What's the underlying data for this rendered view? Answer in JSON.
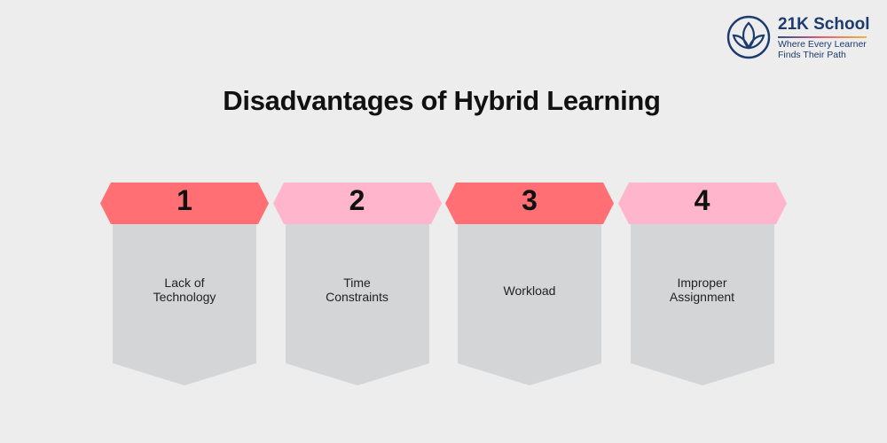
{
  "title": "Disadvantages of Hybrid Learning",
  "logo": {
    "name": "21K School",
    "tagline_line1": "Where Every Learner",
    "tagline_line2": "Finds Their Path"
  },
  "colors": {
    "background": "#ededed",
    "red": "#ff6f73",
    "pink": "#ffb6cc",
    "card_body": "#d4d5d7",
    "brand": "#1d3b6e"
  },
  "items": [
    {
      "number": "1",
      "label": "Lack of\nTechnology",
      "color": "#ff6f73"
    },
    {
      "number": "2",
      "label": "Time\nConstraints",
      "color": "#ffb6cc"
    },
    {
      "number": "3",
      "label": "Workload",
      "color": "#ff6f73"
    },
    {
      "number": "4",
      "label": "Improper\nAssignment",
      "color": "#ffb6cc"
    }
  ]
}
